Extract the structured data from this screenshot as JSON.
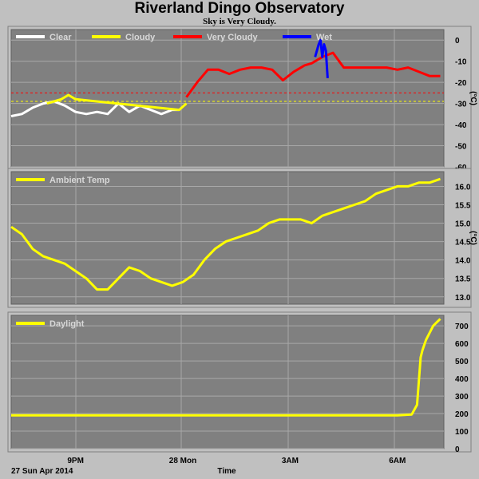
{
  "title": "Riverland Dingo Observatory",
  "subtitle": "Sky is Very Cloudy.",
  "footer": {
    "date": "27 Sun Apr 2014",
    "xlabel": "Time"
  },
  "x_ticks": [
    {
      "label": "9PM",
      "hour": 21
    },
    {
      "label": "28 Mon",
      "hour": 24
    },
    {
      "label": "3AM",
      "hour": 27
    },
    {
      "label": "6AM",
      "hour": 30
    }
  ],
  "chart_data": [
    {
      "type": "line",
      "name": "sky",
      "unit": "(°C)",
      "ylim": [
        -60,
        5
      ],
      "yticks": [
        0,
        -10,
        -20,
        -30,
        -40,
        -50,
        -60
      ],
      "xlim_hours": [
        19.2,
        31.3
      ],
      "thresholds": [
        {
          "value": -25,
          "color": "#ff0000"
        },
        {
          "value": -29,
          "color": "#ffff00"
        }
      ],
      "legend": [
        {
          "label": "Clear",
          "color": "#ffffff"
        },
        {
          "label": "Cloudy",
          "color": "#ffff00"
        },
        {
          "label": "Very Cloudy",
          "color": "#ff0000"
        },
        {
          "label": "Wet",
          "color": "#0000ff"
        }
      ],
      "series": [
        {
          "category": "Clear",
          "color": "#ffffff",
          "x": [
            19.2,
            19.5,
            19.8,
            20.1,
            20.4,
            20.7,
            21.0,
            21.3,
            21.6,
            21.9,
            22.2,
            22.5,
            22.8,
            23.1,
            23.4,
            23.7,
            23.9
          ],
          "y": [
            -36,
            -35,
            -32,
            -30,
            -29,
            -31,
            -34,
            -35,
            -34,
            -35,
            -30,
            -34,
            -31,
            -33,
            -35,
            -33,
            -33
          ]
        },
        {
          "category": "Cloudy",
          "color": "#ffff00",
          "x": [
            20.2,
            20.4,
            20.6,
            20.8,
            21.0,
            23.9,
            24.1
          ],
          "y": [
            -30,
            -29,
            -28,
            -26,
            -28,
            -33,
            -30
          ]
        },
        {
          "category": "Very Cloudy",
          "color": "#ff0000",
          "x": [
            24.1,
            24.4,
            24.7,
            25.0,
            25.3,
            25.6,
            25.9,
            26.2,
            26.5,
            26.8,
            27.1,
            27.4,
            27.6,
            27.9,
            28.2,
            28.5,
            28.8,
            29.1,
            29.4,
            29.7,
            30.0,
            30.3,
            30.6,
            30.9,
            31.2
          ],
          "y": [
            -27,
            -20,
            -14,
            -14,
            -16,
            -14,
            -13,
            -13,
            -14,
            -19,
            -15,
            -12,
            -11,
            -8,
            -6,
            -13,
            -13,
            -13,
            -13,
            -13,
            -14,
            -13,
            -15,
            -17,
            -17
          ]
        },
        {
          "category": "Wet",
          "color": "#0000ff",
          "x": [
            27.7,
            27.8,
            27.85,
            27.9,
            27.95,
            28.0,
            28.05
          ],
          "y": [
            -8,
            -2,
            0,
            -8,
            -2,
            -5,
            -18
          ]
        }
      ]
    },
    {
      "type": "line",
      "name": "ambient",
      "unit": "(°C)",
      "ylim": [
        12.8,
        16.4
      ],
      "yticks": [
        13.0,
        13.5,
        14.0,
        14.5,
        15.0,
        15.5,
        16.0
      ],
      "xlim_hours": [
        19.2,
        31.3
      ],
      "legend": [
        {
          "label": "Ambient Temp",
          "color": "#ffff00"
        }
      ],
      "series": [
        {
          "category": "Ambient Temp",
          "color": "#ffff00",
          "x": [
            19.2,
            19.5,
            19.8,
            20.1,
            20.4,
            20.7,
            21.0,
            21.3,
            21.6,
            21.9,
            22.2,
            22.5,
            22.8,
            23.1,
            23.4,
            23.7,
            24.0,
            24.3,
            24.6,
            24.9,
            25.2,
            25.5,
            25.8,
            26.1,
            26.4,
            26.7,
            27.0,
            27.3,
            27.6,
            27.9,
            28.2,
            28.5,
            28.8,
            29.1,
            29.4,
            29.7,
            30.0,
            30.3,
            30.6,
            30.9,
            31.2
          ],
          "y": [
            14.9,
            14.7,
            14.3,
            14.1,
            14.0,
            13.9,
            13.7,
            13.5,
            13.2,
            13.2,
            13.5,
            13.8,
            13.7,
            13.5,
            13.4,
            13.3,
            13.4,
            13.6,
            14.0,
            14.3,
            14.5,
            14.6,
            14.7,
            14.8,
            15.0,
            15.1,
            15.1,
            15.1,
            15.0,
            15.2,
            15.3,
            15.4,
            15.5,
            15.6,
            15.8,
            15.9,
            16.0,
            16.0,
            16.1,
            16.1,
            16.2
          ]
        }
      ]
    },
    {
      "type": "line",
      "name": "daylight",
      "unit": "",
      "ylim": [
        0,
        760
      ],
      "yticks": [
        0,
        100,
        200,
        300,
        400,
        500,
        600,
        700
      ],
      "xlim_hours": [
        19.2,
        31.3
      ],
      "legend": [
        {
          "label": "Daylight",
          "color": "#ffff00"
        }
      ],
      "series": [
        {
          "category": "Daylight",
          "color": "#ffff00",
          "x": [
            19.2,
            20.0,
            21.0,
            22.0,
            23.0,
            24.0,
            25.0,
            26.0,
            27.0,
            28.0,
            29.0,
            30.0,
            30.4,
            30.55,
            30.65,
            30.7,
            30.8,
            30.9,
            31.0,
            31.1,
            31.2
          ],
          "y": [
            190,
            190,
            190,
            190,
            190,
            190,
            190,
            190,
            190,
            190,
            190,
            190,
            195,
            250,
            520,
            560,
            620,
            660,
            700,
            720,
            740
          ]
        }
      ]
    }
  ]
}
